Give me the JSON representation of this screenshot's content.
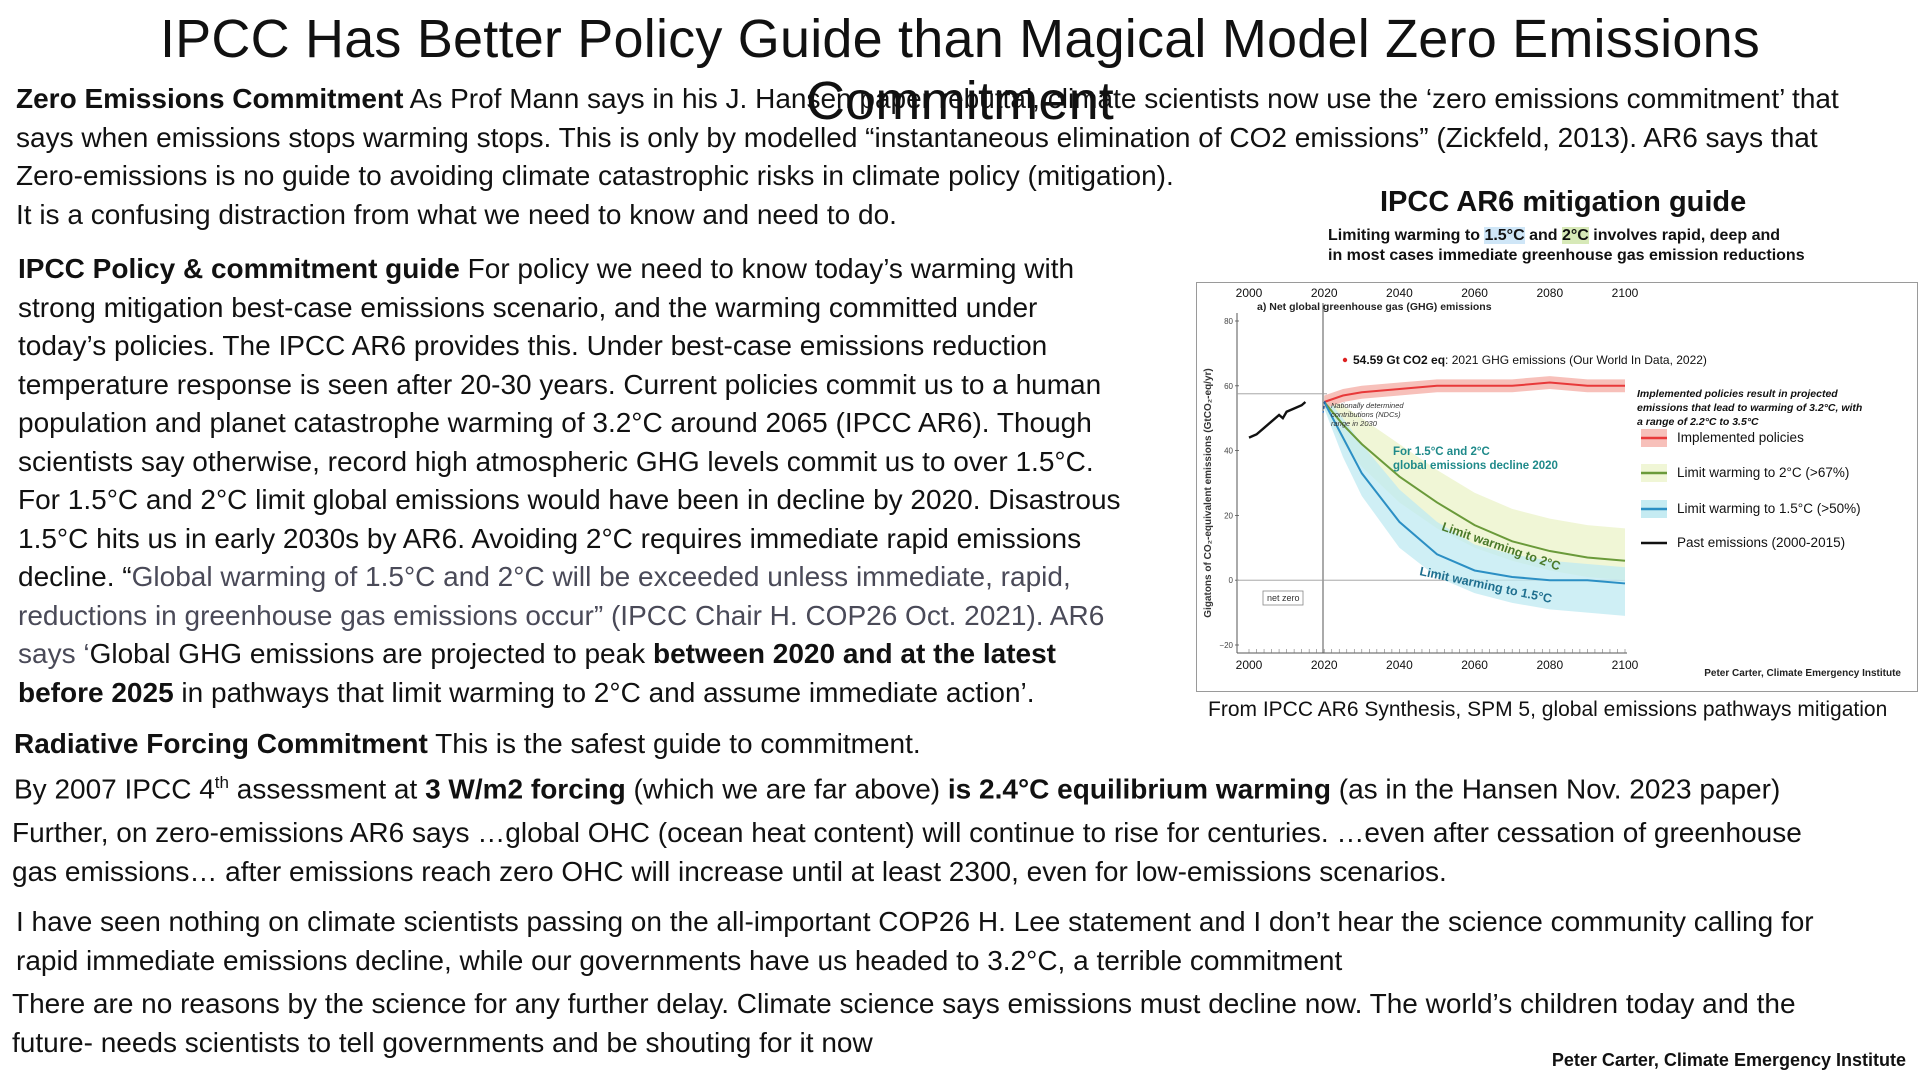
{
  "title": "IPCC Has Better Policy Guide than Magical Model  Zero Emissions Commitment",
  "para1": {
    "lead": "Zero Emissions Commitment",
    "line1": " As Prof Mann says in his J. Hansen paper rebuttal, climate scientists now use the ‘zero emissions commitment’ that",
    "line2": "says when emissions stops warming stops. This is only by modelled “instantaneous elimination of CO2 emissions” (Zickfeld, 2013). AR6 says that",
    "line3": "Zero-emissions is no guide to avoiding climate catastrophic risks in climate policy (mitigation).",
    "line4": "It is a confusing distraction from what we need to know and need to do."
  },
  "para2": {
    "lead": "IPCC Policy & commitment guide",
    "l1": "  For policy we need to know today’s warming with",
    "l2": "strong mitigation best-case emissions scenario, and the warming committed under",
    "l3": "today’s policies. The IPCC AR6 provides this. Under best-case emissions reduction",
    "l4": "temperature response is seen after 20-30 years. Current policies commit us to a human",
    "l5": "population and planet catastrophe warming of 3.2°C around 2065 (IPCC AR6). Though",
    "l6": "scientists say otherwise, record high atmospheric GHG levels commit us to over 1.5°C.",
    "l7": "For 1.5°C and 2°C limit global emissions would have been in decline by 2020. Disastrous",
    "l8": "1.5°C hits us in early 2030s by AR6.  Avoiding 2°C requires immediate rapid emissions",
    "l9a": "decline. “",
    "l9b": "Global warming of 1.5°C and 2°C will be exceeded unless immediate, rapid,",
    "l10a": "reductions in greenhouse gas emissions occur",
    "l10b": "” (IPCC Chair H. COP26 Oct. 2021). AR6",
    "l11a": "says ‘",
    "l11b": "Global GHG emissions are projected to peak ",
    "l11c": "between 2020 and at the latest",
    "l12a": "before 2025",
    "l12b": " in pathways that limit warming to 2°C and assume immediate action’."
  },
  "para3": {
    "lead": "Radiative Forcing Commitment",
    "l1": "  This is the safest guide to commitment.",
    "l2a": "By 2007 IPCC 4",
    "l2sup": "th",
    "l2b": " assessment at ",
    "l2c": "3 W/m2 forcing",
    "l2d": " (which we are far above) ",
    "l2e": "is 2.4°C equilibrium warming",
    "l2f": " (as in the Hansen Nov. 2023 paper)"
  },
  "para4": {
    "l1": "Further, on zero-emissions AR6 says …global OHC (ocean heat content) will continue to rise for centuries. …even after cessation of greenhouse",
    "l2": "gas emissions… after emissions reach zero OHC will increase until at least 2300, even for low-emissions scenarios."
  },
  "para5": {
    "l1": "I have seen nothing on climate scientists passing on the all-important COP26 H. Lee statement and I don’t hear the science community calling for",
    "l2": "rapid immediate emissions decline, while our governments have us headed to 3.2°C, a terrible commitment"
  },
  "para6": {
    "l1": "There are no reasons by the science for any further delay. Climate science says emissions must decline now. The world’s children today and the",
    "l2": "future- needs scientists to tell governments and be shouting for it now"
  },
  "credit": "Peter Carter, Climate Emergency Institute",
  "figure": {
    "title": "IPCC AR6 mitigation guide",
    "sub1a": "Limiting warming to ",
    "sub1b": "1.5°C",
    "sub1c": " and ",
    "sub1d": "2°C",
    "sub1e": " involves rapid, deep and",
    "sub2": "in most cases immediate greenhouse gas emission reductions",
    "caption": "From IPCC AR6 Synthesis, SPM 5, global emissions pathways mitigation"
  },
  "chart_data": {
    "type": "area",
    "ylabel": "Gigatons of CO₂-equivalent emissions (GtCO₂-eq/yr)",
    "panel_label": "a) Net global greenhouse gas (GHG) emissions",
    "x_ticks": [
      "2000",
      "2020",
      "2040",
      "2060",
      "2080",
      "2100"
    ],
    "y_ticks": [
      "80",
      "60",
      "40",
      "20",
      "0",
      "−20"
    ],
    "xlim": [
      2000,
      2100
    ],
    "ylim": [
      -20,
      80
    ],
    "net_zero_label": "net zero",
    "annotation_point": "54.59 Gt CO2 eq",
    "annotation_rest": ": 2021 GHG emissions  (Our World In Data, 2022)",
    "ndc_note": [
      "Nationally determined",
      "contributions (NDCs)",
      "range in 2030"
    ],
    "decline_note": [
      "For 1.5°C and 2°C",
      "global emissions decline 2020"
    ],
    "implemented_note": [
      "Implemented policies result in projected",
      "emissions that lead to warming of 3.2°C, with",
      "a range of 2.2°C to 3.5°C"
    ],
    "curve_label_2c": "Limit warming to 2°C",
    "curve_label_15c": "Limit warming to 1.5°C",
    "credit_small": "Peter Carter, Climate Emergency Institute",
    "legend": [
      {
        "label": "Implemented policies",
        "color": "#e8393a"
      },
      {
        "label": "Limit warming to 2°C (>67%)",
        "color": "#6a9a3a"
      },
      {
        "label": "Limit warming to 1.5°C (>50%)",
        "color": "#2b8fc4"
      },
      {
        "label": "Past emissions (2000-2015)",
        "color": "#111111"
      }
    ],
    "series": [
      {
        "name": "Past emissions (2000-2015)",
        "x": [
          2000,
          2002,
          2004,
          2006,
          2008,
          2009,
          2010,
          2012,
          2014,
          2015
        ],
        "values": [
          44,
          45,
          47,
          49,
          51,
          50,
          52,
          53,
          54,
          55
        ]
      },
      {
        "name": "Implemented policies",
        "x": [
          2020,
          2025,
          2030,
          2040,
          2050,
          2060,
          2070,
          2080,
          2090,
          2100
        ],
        "values": [
          55,
          57,
          58,
          59,
          60,
          60,
          60,
          61,
          60,
          60
        ]
      },
      {
        "name": "Limit warming to 2°C (>67%)",
        "x": [
          2020,
          2025,
          2030,
          2040,
          2050,
          2060,
          2070,
          2080,
          2090,
          2100
        ],
        "values": [
          55,
          48,
          42,
          32,
          24,
          17,
          12,
          9,
          7,
          6
        ]
      },
      {
        "name": "Limit warming to 1.5°C (>50%)",
        "x": [
          2020,
          2025,
          2030,
          2040,
          2050,
          2060,
          2070,
          2080,
          2090,
          2100
        ],
        "values": [
          55,
          44,
          33,
          18,
          8,
          3,
          1,
          0,
          0,
          -1
        ]
      }
    ],
    "bands": {
      "Implemented policies": {
        "upper": [
          57,
          59,
          60,
          61,
          62,
          62,
          62,
          63,
          62,
          62
        ],
        "lower": [
          53,
          55,
          56,
          57,
          58,
          58,
          58,
          59,
          58,
          58
        ]
      },
      "Limit warming to 2°C (>67%)": {
        "upper": [
          57,
          54,
          50,
          42,
          34,
          27,
          22,
          19,
          17,
          16
        ],
        "lower": [
          53,
          42,
          35,
          24,
          16,
          10,
          6,
          3,
          1,
          0
        ]
      },
      "Limit warming to 1.5°C (>50%)": {
        "upper": [
          57,
          50,
          42,
          28,
          18,
          11,
          8,
          6,
          5,
          4
        ],
        "lower": [
          53,
          38,
          26,
          10,
          1,
          -4,
          -7,
          -9,
          -10,
          -11
        ]
      }
    }
  }
}
